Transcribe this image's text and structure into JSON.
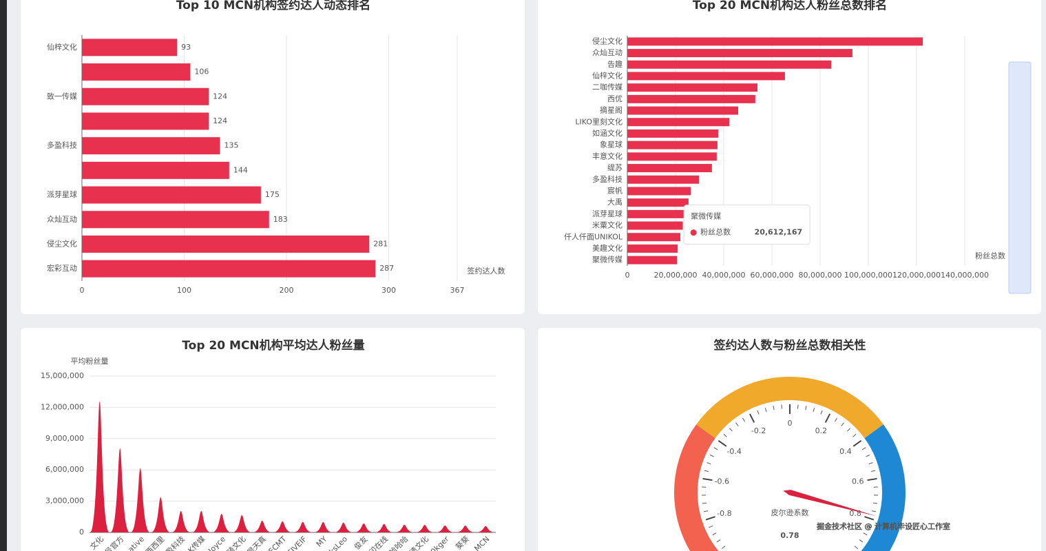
{
  "chart_data": [
    {
      "type": "hbar",
      "title": "Top 10 MCN机构签约达人动态排名",
      "categories": [
        "仙梓文化",
        null,
        "致一传媒",
        null,
        "多盈科技",
        null,
        "派芽星球",
        "众灿互动",
        "侵尘文化",
        "宏彩互动"
      ],
      "values": [
        93,
        106,
        124,
        124,
        135,
        144,
        175,
        183,
        281,
        287
      ],
      "color": "#e8304f",
      "xlim": [
        0,
        367
      ],
      "xticks": [
        0,
        100,
        200,
        300,
        367
      ],
      "xlabel": "签约达人数",
      "grid": true,
      "value_labels_shown": true
    },
    {
      "type": "hbar",
      "title": "Top 20 MCN机构达人粉丝总数排名",
      "categories": [
        "侵尘文化",
        "众灿互动",
        "告趣",
        "仙梓文化",
        "二咖传媒",
        "西优",
        "摘星阁",
        "LIKO里刻文化",
        "如涵文化",
        "象星球",
        "丰意文化",
        "缇苏",
        "多盈科技",
        "宸帆",
        "大禹",
        "派芽星球",
        "米粟文化",
        "仟人仟面UNIKOL",
        "美趣文化",
        "聚微传媒"
      ],
      "series": [
        {
          "name": "粉丝总数",
          "color": "#e8304f",
          "values": [
            122600000,
            93400000,
            84600000,
            65400000,
            54000000,
            53100000,
            46000000,
            42300000,
            37700000,
            37400000,
            37100000,
            35100000,
            29700000,
            26300000,
            25400000,
            24000000,
            23000000,
            22000000,
            20900000,
            20612167
          ]
        }
      ],
      "xlim": [
        0,
        140000000
      ],
      "xticks": [
        0,
        {
          "value": 20000000,
          "label": "20,000,000"
        },
        {
          "value": 40000000,
          "label": "40,000,000"
        },
        {
          "value": 60000000,
          "label": "60,000,000"
        },
        {
          "value": 80000000,
          "label": "80,000,000"
        },
        {
          "value": 100000000,
          "label": "100,000,000"
        },
        {
          "value": 120000000,
          "label": "120,000,000"
        },
        {
          "value": 140000000,
          "label": "140,000,000"
        }
      ],
      "xlabel": "粉丝总数",
      "grid": true,
      "tooltip": {
        "index": 19,
        "value_label": "20,612,167"
      }
    },
    {
      "type": "pictorial",
      "title": "Top 20 MCN机构平均达人粉丝量",
      "categories": [
        "文化",
        "号官方",
        "ative",
        "西西里",
        "盈科技",
        "K传媒",
        "Joyce",
        "骑文化",
        "是天真",
        "ECMT",
        "FIVEIF",
        "MY",
        "ksLeo",
        "俊友",
        "印在线",
        "哈哈哈",
        "渍文化",
        "0kger",
        "葵葵",
        "MCN"
      ],
      "values": [
        12560000,
        8060000,
        6150000,
        3370000,
        2050000,
        2050000,
        1780000,
        1650000,
        1120000,
        1060000,
        1000000,
        990000,
        930000,
        860000,
        800000,
        730000,
        720000,
        660000,
        650000,
        600000
      ],
      "color": "#dc2040",
      "ylim": [
        0,
        15000000
      ],
      "yticks": [
        0,
        {
          "value": 3000000,
          "label": "3,000,000"
        },
        {
          "value": 6000000,
          "label": "6,000,000"
        },
        {
          "value": 9000000,
          "label": "9,000,000"
        },
        {
          "value": 12000000,
          "label": "12,000,000"
        },
        {
          "value": 15000000,
          "label": "15,000,000"
        }
      ],
      "ylabel": "平均粉丝量",
      "grid": true
    },
    {
      "type": "gauge",
      "title": "签约达人数与粉丝总数相关性",
      "min": -1,
      "max": 1,
      "ticks": [
        -0.8,
        -0.6,
        -0.4,
        -0.2,
        0,
        0.2,
        0.4,
        0.6,
        0.8
      ],
      "value": 0.78,
      "name": "皮尔逊系数",
      "colors": [
        [
          0.3,
          "#f3614f"
        ],
        [
          0.7,
          "#f0a92b"
        ],
        [
          1,
          "#1f88d4"
        ]
      ]
    }
  ],
  "watermark": "掘金技术社区 @ 计算机毕设匠心工作室"
}
